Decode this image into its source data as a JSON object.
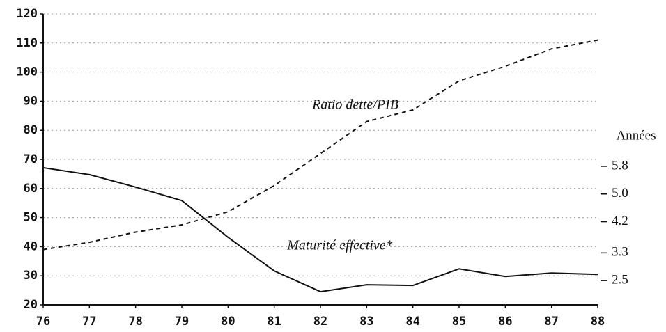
{
  "chart_data": {
    "type": "line",
    "categories": [
      "76",
      "77",
      "78",
      "79",
      "80",
      "81",
      "82",
      "83",
      "84",
      "85",
      "86",
      "87",
      "88"
    ],
    "series": [
      {
        "name": "Ratio dette/PIB",
        "color": "#111111",
        "dash": true,
        "values": [
          39,
          41.5,
          45,
          47.5,
          52,
          61,
          72,
          83,
          87,
          97,
          102,
          108,
          111
        ]
      },
      {
        "name": "Maturité effective*",
        "color": "#111111",
        "axis": "y2",
        "values": [
          5.76,
          5.56,
          5.2,
          4.81,
          3.75,
          2.78,
          2.18,
          2.38,
          2.36,
          2.84,
          2.62,
          2.72,
          2.68
        ]
      }
    ],
    "ylim": [
      20,
      120
    ],
    "yticks": [
      20,
      30,
      40,
      50,
      60,
      70,
      80,
      90,
      100,
      110,
      120
    ],
    "y2lim": [
      1.8,
      10.2
    ],
    "y2ticks": [
      2.5,
      3.3,
      4.2,
      {
        "value": 5,
        "label": "5.0"
      },
      5.8
    ],
    "y2label": "Années",
    "grid": true
  }
}
